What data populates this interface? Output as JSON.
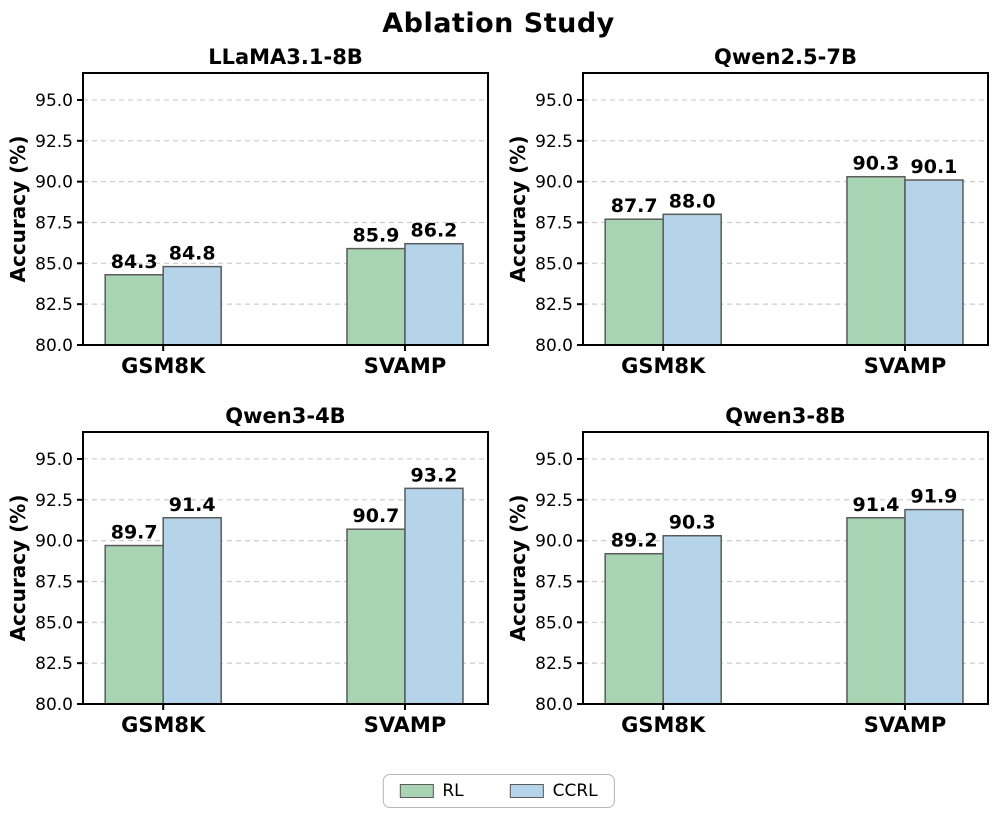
{
  "page": {
    "title": "Ablation Study"
  },
  "colors": {
    "rl_fill": "#a8d4b4",
    "ccrl_fill": "#b5d4e9",
    "bar_edge": "#5a5a5a",
    "grid": "#cccccc",
    "axis": "#000000",
    "text": "#000000"
  },
  "legend": {
    "items": [
      {
        "label": "RL",
        "color": "#a8d4b4"
      },
      {
        "label": "CCRL",
        "color": "#b5d4e9"
      }
    ]
  },
  "chart_data": [
    {
      "type": "bar",
      "title": "LLaMA3.1-8B",
      "categories": [
        "GSM8K",
        "SVAMP"
      ],
      "series": [
        {
          "name": "RL",
          "values": [
            84.3,
            85.9
          ]
        },
        {
          "name": "CCRL",
          "values": [
            84.8,
            86.2
          ]
        }
      ],
      "ylabel": "Accuracy (%)",
      "xlabel": "",
      "ylim": [
        80.0,
        96.65
      ],
      "yticks": [
        80.0,
        82.5,
        85.0,
        87.5,
        90.0,
        92.5,
        95.0
      ],
      "grid": true,
      "legend_position": "figure-bottom"
    },
    {
      "type": "bar",
      "title": "Qwen2.5-7B",
      "categories": [
        "GSM8K",
        "SVAMP"
      ],
      "series": [
        {
          "name": "RL",
          "values": [
            87.7,
            90.3
          ]
        },
        {
          "name": "CCRL",
          "values": [
            88.0,
            90.1
          ]
        }
      ],
      "ylabel": "Accuracy (%)",
      "xlabel": "",
      "ylim": [
        80.0,
        96.65
      ],
      "yticks": [
        80.0,
        82.5,
        85.0,
        87.5,
        90.0,
        92.5,
        95.0
      ],
      "grid": true,
      "legend_position": "figure-bottom"
    },
    {
      "type": "bar",
      "title": "Qwen3-4B",
      "categories": [
        "GSM8K",
        "SVAMP"
      ],
      "series": [
        {
          "name": "RL",
          "values": [
            89.7,
            90.7
          ]
        },
        {
          "name": "CCRL",
          "values": [
            91.4,
            93.2
          ]
        }
      ],
      "ylabel": "Accuracy (%)",
      "xlabel": "",
      "ylim": [
        80.0,
        96.65
      ],
      "yticks": [
        80.0,
        82.5,
        85.0,
        87.5,
        90.0,
        92.5,
        95.0
      ],
      "grid": true,
      "legend_position": "figure-bottom"
    },
    {
      "type": "bar",
      "title": "Qwen3-8B",
      "categories": [
        "GSM8K",
        "SVAMP"
      ],
      "series": [
        {
          "name": "RL",
          "values": [
            89.2,
            91.4
          ]
        },
        {
          "name": "CCRL",
          "values": [
            90.3,
            91.9
          ]
        }
      ],
      "ylabel": "Accuracy (%)",
      "xlabel": "",
      "ylim": [
        80.0,
        96.65
      ],
      "yticks": [
        80.0,
        82.5,
        85.0,
        87.5,
        90.0,
        92.5,
        95.0
      ],
      "grid": true,
      "legend_position": "figure-bottom"
    }
  ]
}
